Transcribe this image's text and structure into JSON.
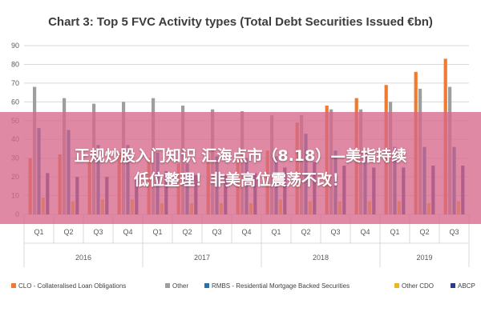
{
  "banner": {
    "line1": "正规炒股入门知识 汇海点市（8.18）—美指持续",
    "line2": "低位整理！非美高位震荡不改！"
  },
  "chart_data": {
    "type": "bar",
    "title": "Chart 3: Top 5 FVC Activity types (Total Debt Securities Issued €bn)",
    "ylim": [
      0,
      90
    ],
    "yticks": [
      0,
      10,
      20,
      30,
      40,
      50,
      60,
      70,
      80,
      90
    ],
    "grid": true,
    "legend_position": "bottom",
    "categories": [
      "Q1",
      "Q2",
      "Q3",
      "Q4",
      "Q1",
      "Q2",
      "Q3",
      "Q4",
      "Q1",
      "Q2",
      "Q3",
      "Q4",
      "Q1",
      "Q2",
      "Q3"
    ],
    "year_groups": [
      {
        "label": "2016",
        "count": 4
      },
      {
        "label": "2017",
        "count": 4
      },
      {
        "label": "2018",
        "count": 4
      },
      {
        "label": "2019",
        "count": 3
      }
    ],
    "series": [
      {
        "name": "CLO - Collateralised Loan Obligations",
        "color": "#ee7b30",
        "values": [
          30,
          32,
          29,
          33,
          30,
          27,
          30,
          31,
          34,
          49,
          58,
          62,
          69,
          76,
          83
        ]
      },
      {
        "name": "Other",
        "color": "#9e9e9e",
        "values": [
          68,
          62,
          59,
          60,
          62,
          58,
          56,
          55,
          53,
          53,
          56,
          56,
          60,
          67,
          68
        ]
      },
      {
        "name": "RMBS - Residential Mortgage Backed Securities",
        "color": "#2a6faf",
        "values": [
          46,
          45,
          37,
          37,
          33,
          27,
          31,
          30,
          31,
          43,
          34,
          34,
          36,
          36,
          36
        ]
      },
      {
        "name": "Other CDO",
        "color": "#f0b422",
        "values": [
          9,
          7,
          8,
          8,
          6,
          6,
          6,
          6,
          8,
          7,
          7,
          7,
          7,
          6,
          7
        ]
      },
      {
        "name": "ABCP",
        "color": "#2d3b87",
        "values": [
          22,
          20,
          20,
          20,
          23,
          21,
          21,
          22,
          25,
          28,
          26,
          25,
          25,
          26,
          26
        ]
      }
    ]
  }
}
